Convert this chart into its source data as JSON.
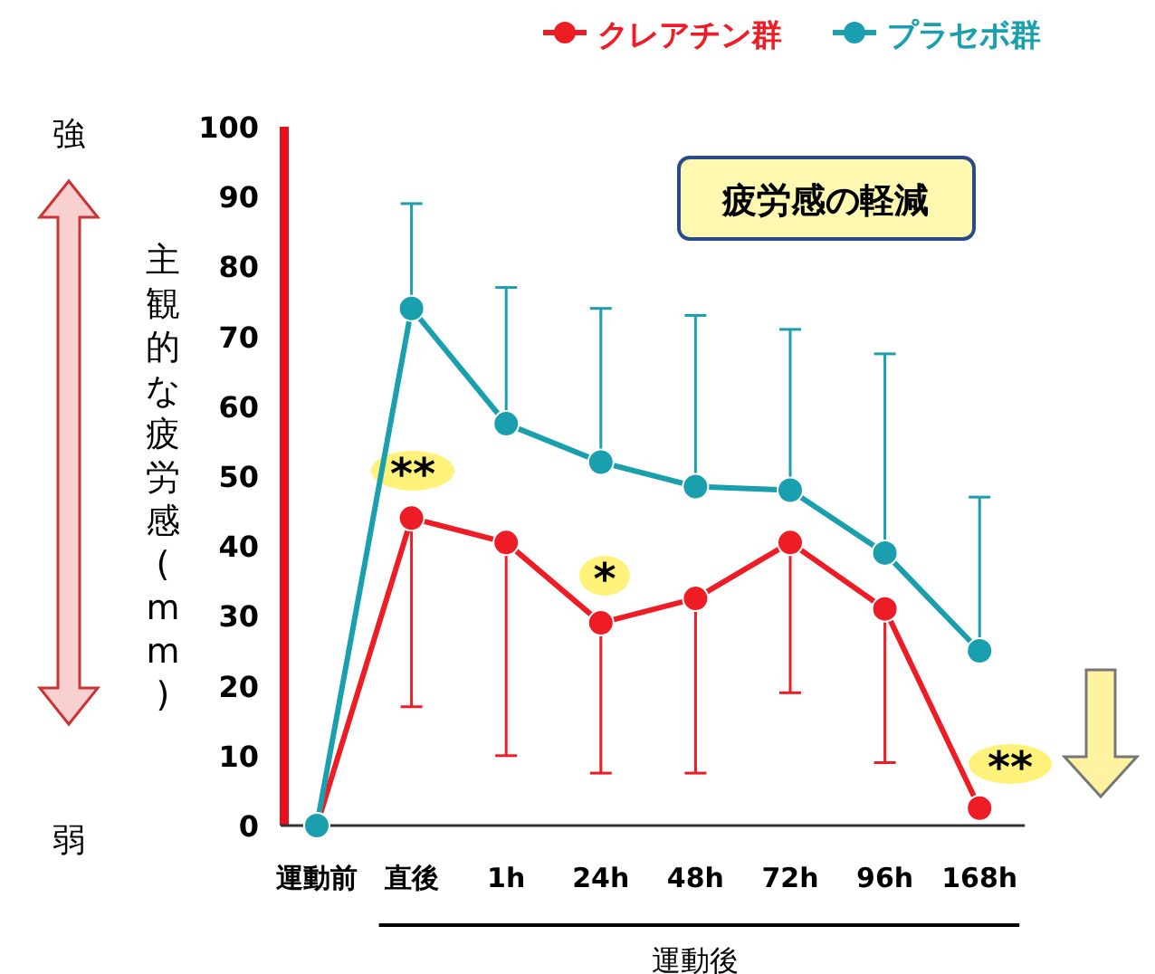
{
  "chart_data": {
    "type": "line",
    "title": "疲労感の軽減",
    "ylabel": "主観的な疲労感(mm)",
    "xlabel": "運動後",
    "categories": [
      "運動前",
      "直後",
      "1h",
      "24h",
      "48h",
      "72h",
      "96h",
      "168h"
    ],
    "series": [
      {
        "name": "クレアチン群",
        "color": "#ee1c25",
        "values": [
          0,
          44,
          40.5,
          29,
          32.5,
          40.5,
          31,
          2.5
        ],
        "errors": [
          null,
          [
            17,
            44
          ],
          [
            10,
            40.5
          ],
          [
            7.5,
            29
          ],
          [
            7.5,
            32.5
          ],
          [
            19,
            40.5
          ],
          [
            9,
            31
          ],
          null
        ]
      },
      {
        "name": "プラセボ群",
        "color": "#1a9fae",
        "values": [
          0,
          74,
          57.5,
          52,
          48.5,
          48,
          39,
          25
        ],
        "errors": [
          null,
          [
            74,
            89
          ],
          [
            57.5,
            77
          ],
          [
            52,
            74
          ],
          [
            48.5,
            73
          ],
          [
            48,
            71
          ],
          [
            39,
            67.5
          ],
          [
            25,
            47
          ]
        ]
      }
    ],
    "ylim": [
      0,
      100
    ],
    "yticks": [
      0,
      10,
      20,
      30,
      40,
      50,
      60,
      70,
      80,
      90,
      100
    ],
    "marker": "circle",
    "legend": "top right",
    "grid": false,
    "annotations": [
      "強",
      "弱",
      "**",
      "*",
      "**"
    ]
  }
}
